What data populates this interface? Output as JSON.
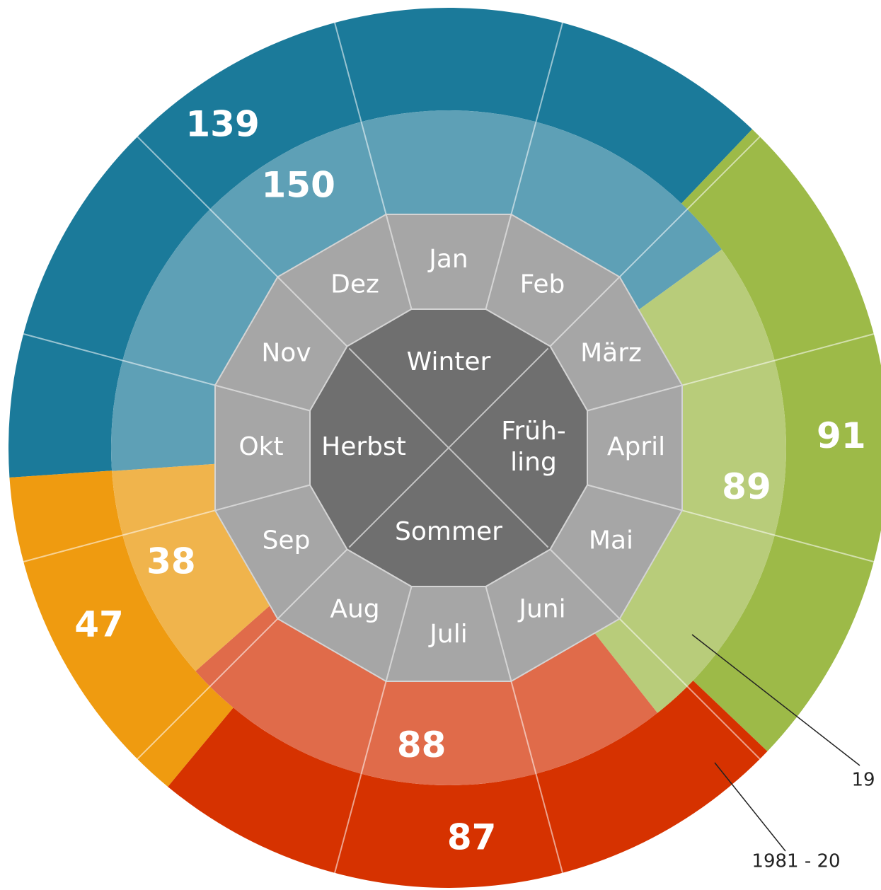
{
  "chart_data": {
    "type": "radial",
    "categories": [
      "Winter",
      "Früh-\nling",
      "Sommer",
      "Herbst"
    ],
    "months": [
      "Jan",
      "Feb",
      "März",
      "April",
      "Mai",
      "Juni",
      "Juli",
      "Aug",
      "Sep",
      "Okt",
      "Nov",
      "Dez"
    ],
    "series": [
      {
        "name": "19",
        "colors": [
          "#5ea0b6",
          "#b8cc7a",
          "#e06b4a",
          "#f0b44c"
        ],
        "values": [
          150,
          89,
          88,
          38
        ]
      },
      {
        "name": "1981 - 20",
        "colors": [
          "#1b7a9a",
          "#9dba48",
          "#d63200",
          "#ef9b10"
        ],
        "values": [
          139,
          91,
          87,
          47
        ]
      }
    ]
  }
}
